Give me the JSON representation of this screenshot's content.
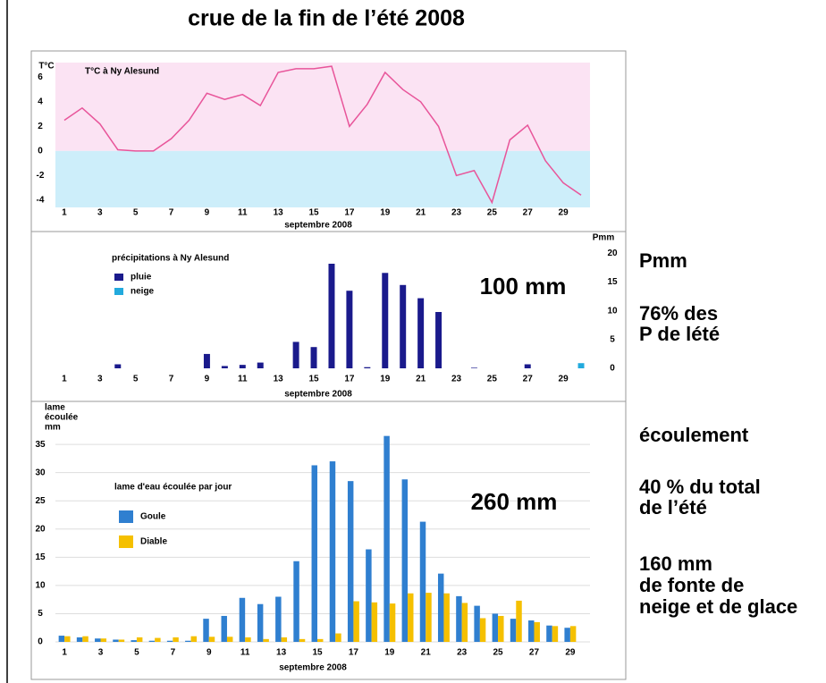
{
  "title": "crue de la fin de l’été 2008",
  "side_notes": [
    [
      "Pmm"
    ],
    [
      "76% des",
      "P de lété"
    ],
    [
      "écoulement"
    ],
    [
      "40 % du total",
      "de l’été"
    ],
    [
      "160 mm",
      "de fonte de",
      "neige et de glace"
    ]
  ],
  "chart_data": [
    {
      "type": "line",
      "title": "T°C à Ny Alesund",
      "ylabel": "T°C",
      "xlabel": "septembre 2008",
      "x": [
        1,
        2,
        3,
        4,
        5,
        6,
        7,
        8,
        9,
        10,
        11,
        12,
        13,
        14,
        15,
        16,
        17,
        18,
        19,
        20,
        21,
        22,
        23,
        24,
        25,
        26,
        27,
        28,
        29,
        30
      ],
      "series": [
        {
          "name": "T°C à Ny Alesund",
          "color": "#e8559a",
          "values": [
            2.5,
            3.5,
            2.2,
            0.1,
            0,
            0,
            1,
            2.5,
            4.7,
            4.2,
            4.6,
            3.7,
            6.4,
            6.7,
            6.7,
            6.9,
            2,
            3.8,
            6.4,
            5,
            4,
            2,
            -2,
            -1.6,
            -4.2,
            0.9,
            2.1,
            -0.8,
            -2.6,
            -3.6
          ]
        }
      ],
      "xlim": [
        0.5,
        30.5
      ],
      "xticks": [
        1,
        3,
        5,
        7,
        9,
        11,
        13,
        15,
        17,
        19,
        21,
        23,
        25,
        27,
        29
      ],
      "ylim": [
        -4.6,
        7.2
      ],
      "yticks": [
        -4,
        -2,
        0,
        2,
        4,
        6
      ],
      "yaxis_side": "left",
      "grid": false
    },
    {
      "type": "bar",
      "title": "précipitations à Ny Alesund",
      "ylabel": "Pmm",
      "xlabel": "septembre 2008",
      "annotation": "100 mm",
      "x": [
        1,
        2,
        3,
        4,
        5,
        6,
        7,
        8,
        9,
        10,
        11,
        12,
        13,
        14,
        15,
        16,
        17,
        18,
        19,
        20,
        21,
        22,
        23,
        24,
        25,
        26,
        27,
        28,
        29,
        30
      ],
      "series": [
        {
          "name": "pluie",
          "color": "#1a1a8c",
          "values": [
            0,
            0,
            0,
            0.7,
            0,
            0,
            0,
            0,
            2.5,
            0.4,
            0.6,
            1,
            0,
            4.6,
            3.7,
            18.2,
            13.5,
            0.2,
            16.6,
            14.5,
            12.2,
            9.8,
            0,
            0.1,
            0,
            0,
            0.7,
            0,
            0,
            0
          ]
        },
        {
          "name": "neige",
          "color": "#22aadd",
          "values": [
            0,
            0,
            0,
            0,
            0,
            0,
            0,
            0,
            0,
            0,
            0,
            0,
            0,
            0,
            0,
            0,
            0,
            0,
            0,
            0,
            0,
            0,
            0,
            0,
            0,
            0,
            0,
            0,
            0,
            0.9
          ]
        }
      ],
      "xlim": [
        0.5,
        30.5
      ],
      "xticks": [
        1,
        3,
        5,
        7,
        9,
        11,
        13,
        15,
        17,
        19,
        21,
        23,
        25,
        27,
        29
      ],
      "ylim": [
        0,
        21
      ],
      "yticks": [
        0,
        5,
        10,
        15,
        20
      ],
      "yaxis_side": "right",
      "grid": false
    },
    {
      "type": "bar",
      "title": "lame d'eau écoulée par jour",
      "ylabel": [
        "lame",
        "écoulée",
        "mm"
      ],
      "xlabel": "septembre 2008",
      "annotation": "260 mm",
      "x": [
        1,
        2,
        3,
        4,
        5,
        6,
        7,
        8,
        9,
        10,
        11,
        12,
        13,
        14,
        15,
        16,
        17,
        18,
        19,
        20,
        21,
        22,
        23,
        24,
        25,
        26,
        27,
        28,
        29
      ],
      "series": [
        {
          "name": "Goule",
          "color": "#2f7fd0",
          "values": [
            1.1,
            0.8,
            0.6,
            0.4,
            0.3,
            0.2,
            0.2,
            0.2,
            4.1,
            4.6,
            7.8,
            6.7,
            8,
            14.3,
            31.3,
            32,
            28.5,
            16.4,
            36.5,
            28.8,
            21.3,
            12.1,
            8.1,
            6.4,
            5,
            4.1,
            3.8,
            2.9,
            2.5
          ]
        },
        {
          "name": "Diable",
          "color": "#f5c000",
          "values": [
            1,
            1,
            0.6,
            0.4,
            0.8,
            0.7,
            0.8,
            1,
            0.9,
            0.9,
            0.8,
            0.5,
            0.8,
            0.5,
            0.5,
            1.5,
            7.2,
            7,
            6.8,
            8.6,
            8.7,
            8.6,
            6.9,
            4.2,
            4.6,
            7.3,
            3.5,
            2.8,
            2.8
          ]
        }
      ],
      "xlim": [
        0.5,
        29.5
      ],
      "xticks": [
        1,
        3,
        5,
        7,
        9,
        11,
        13,
        15,
        17,
        19,
        21,
        23,
        25,
        27,
        29
      ],
      "ylim": [
        0,
        37
      ],
      "yticks": [
        0,
        5,
        10,
        15,
        20,
        25,
        30,
        35
      ],
      "yaxis_side": "left",
      "grid": true
    }
  ]
}
